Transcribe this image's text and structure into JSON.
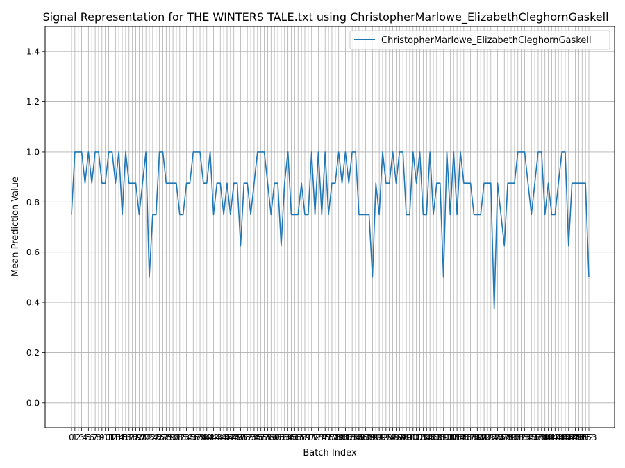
{
  "chart_data": {
    "type": "line",
    "title": "Signal Representation for THE WINTERS TALE.txt using ChristopherMarlowe_ElizabethCleghornGaskell",
    "xlabel": "Batch Index",
    "ylabel": "Mean Prediction Value",
    "ylim": [
      -0.1,
      1.5
    ],
    "y_ticks": [
      "0.0",
      "0.2",
      "0.4",
      "0.6",
      "0.8",
      "1.0",
      "1.2",
      "1.4"
    ],
    "grid": true,
    "legend_position": "top-right",
    "series": [
      {
        "name": "ChristopherMarlowe_ElizabethCleghornGaskell",
        "color": "#1f77b4",
        "x": [
          0,
          1,
          2,
          3,
          4,
          5,
          6,
          7,
          8,
          9,
          10,
          11,
          12,
          13,
          14,
          15,
          16,
          17,
          18,
          19,
          20,
          21,
          22,
          23,
          24,
          25,
          26,
          27,
          28,
          29,
          30,
          31,
          32,
          33,
          34,
          35,
          36,
          37,
          38,
          39,
          40,
          41,
          42,
          43,
          44,
          45,
          46,
          47,
          48,
          49,
          50,
          51,
          52,
          53,
          54,
          55,
          56,
          57,
          58,
          59,
          60,
          61,
          62,
          63,
          64,
          65,
          66,
          67,
          68,
          69,
          70,
          71,
          72,
          73,
          74,
          75,
          76,
          77,
          78,
          79,
          80,
          81,
          82,
          83,
          84,
          85,
          86,
          87,
          88,
          89,
          90,
          91,
          92,
          93,
          94,
          95,
          96,
          97,
          98,
          99,
          100,
          101,
          102,
          103,
          104,
          105,
          106,
          107,
          108,
          109,
          110,
          111,
          112,
          113,
          114,
          115,
          116,
          117,
          118,
          119,
          120,
          121,
          122,
          123,
          124,
          125,
          126,
          127,
          128,
          129,
          130,
          131,
          132,
          133,
          134,
          135,
          136,
          137,
          138,
          139,
          140,
          141,
          142,
          143,
          144,
          145,
          146,
          147,
          148,
          149,
          150,
          151,
          152,
          153
        ],
        "values": [
          0.75,
          1.0,
          1.0,
          1.0,
          0.875,
          1.0,
          0.875,
          1.0,
          1.0,
          0.875,
          0.875,
          1.0,
          1.0,
          0.875,
          1.0,
          0.75,
          1.0,
          0.875,
          0.875,
          0.875,
          0.75,
          0.875,
          1.0,
          0.5,
          0.75,
          0.75,
          1.0,
          1.0,
          0.875,
          0.875,
          0.875,
          0.875,
          0.75,
          0.75,
          0.875,
          0.875,
          1.0,
          1.0,
          1.0,
          0.875,
          0.875,
          1.0,
          0.75,
          0.875,
          0.875,
          0.75,
          0.875,
          0.75,
          0.875,
          0.875,
          0.625,
          0.875,
          0.875,
          0.75,
          0.875,
          1.0,
          1.0,
          1.0,
          0.875,
          0.75,
          0.875,
          0.875,
          0.625,
          0.875,
          1.0,
          0.75,
          0.75,
          0.75,
          0.875,
          0.75,
          0.75,
          1.0,
          0.75,
          1.0,
          0.75,
          1.0,
          0.75,
          0.875,
          0.875,
          1.0,
          0.875,
          1.0,
          0.875,
          1.0,
          1.0,
          0.75,
          0.75,
          0.75,
          0.75,
          0.5,
          0.875,
          0.75,
          1.0,
          0.875,
          0.875,
          1.0,
          0.875,
          1.0,
          1.0,
          0.75,
          0.75,
          1.0,
          0.875,
          1.0,
          0.75,
          0.75,
          1.0,
          0.75,
          0.875,
          0.875,
          0.5,
          1.0,
          0.75,
          1.0,
          0.75,
          1.0,
          0.875,
          0.875,
          0.875,
          0.75,
          0.75,
          0.75,
          0.875,
          0.875,
          0.875,
          0.375,
          0.875,
          0.75,
          0.625,
          0.875,
          0.875,
          0.875,
          1.0,
          1.0,
          1.0,
          0.875,
          0.75,
          0.875,
          1.0,
          1.0,
          0.75,
          0.875,
          0.75,
          0.75,
          0.875,
          1.0,
          1.0,
          0.625,
          0.875,
          0.875,
          0.875,
          0.875,
          0.875,
          0.5
        ]
      }
    ]
  }
}
